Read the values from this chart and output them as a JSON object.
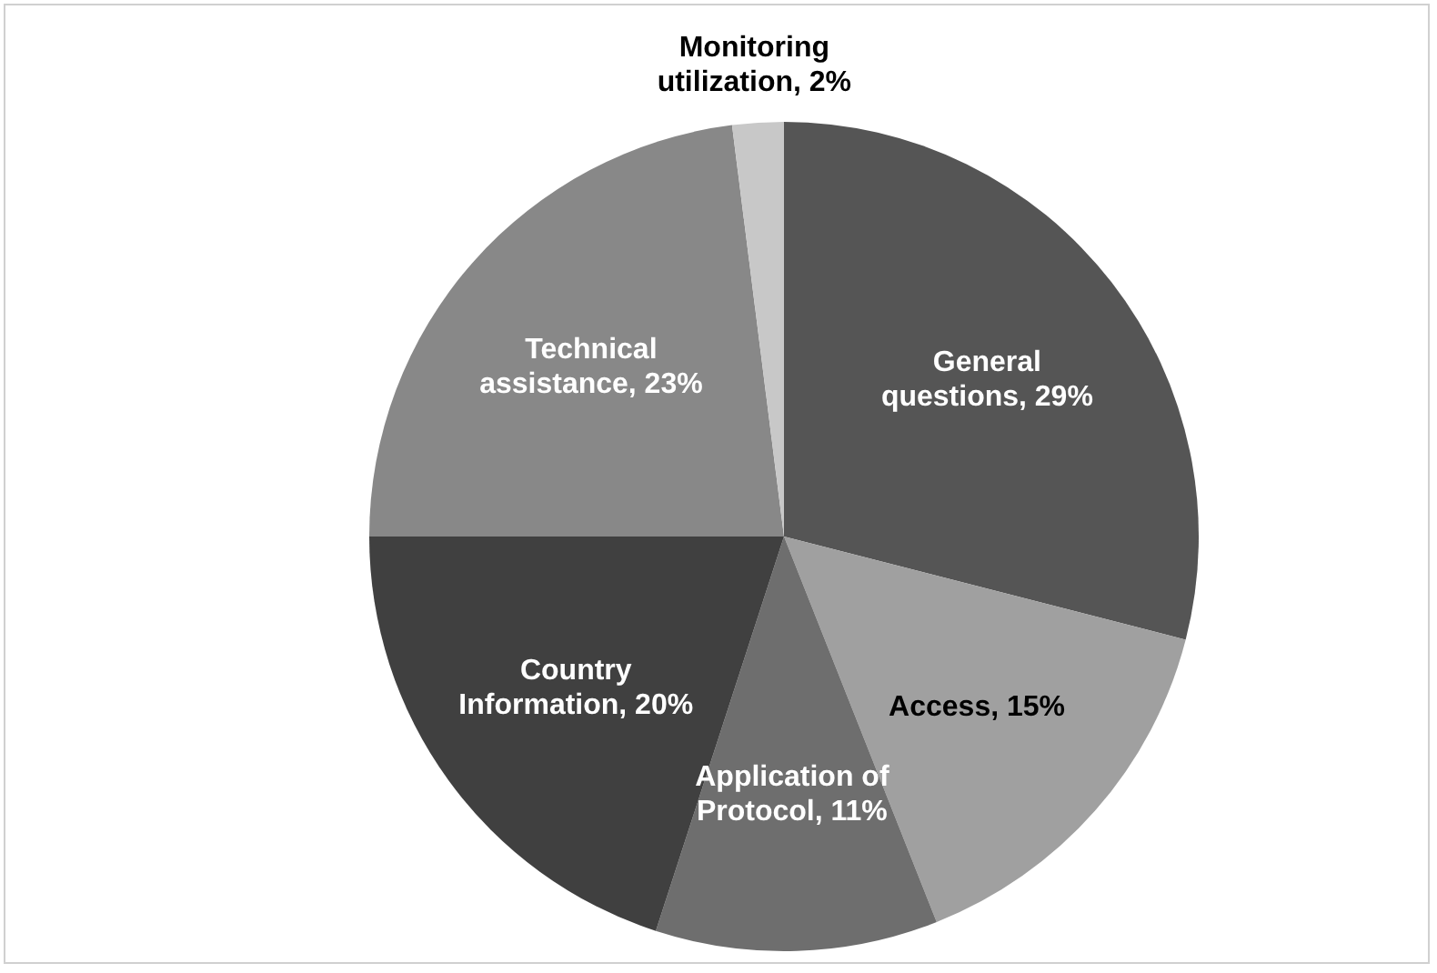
{
  "chart_data": {
    "type": "pie",
    "categories": [
      "General questions",
      "Access",
      "Application of Protocol",
      "Country Information",
      "Technical assistance",
      "Monitoring utilization"
    ],
    "values": [
      29,
      15,
      11,
      20,
      23,
      2
    ],
    "value_labels": [
      "29%",
      "15%",
      "11%",
      "20%",
      "23%",
      "2%"
    ],
    "colors": [
      "#555555",
      "#a0a0a0",
      "#6e6e6e",
      "#404040",
      "#888888",
      "#c8c8c8"
    ],
    "legend": false
  }
}
